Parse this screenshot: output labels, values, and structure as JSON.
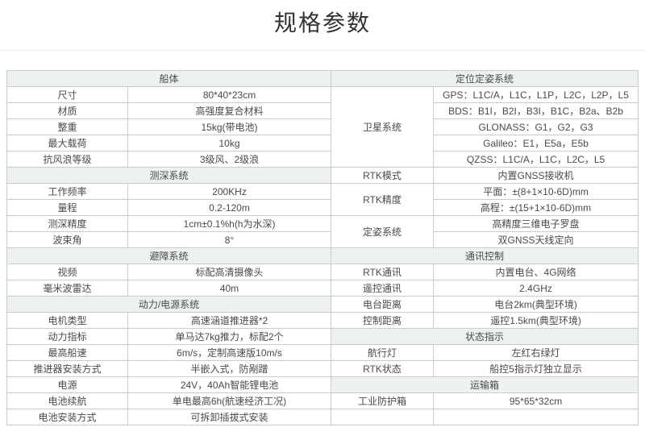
{
  "page": {
    "title": "规格参数"
  },
  "colors": {
    "section_header_bg": "#edf1f1",
    "grid_border": "#cbcbcb",
    "outer_border": "#b2b2b2",
    "text": "#4a4a4a"
  },
  "spec": {
    "left_sections": [
      {
        "title": "船体",
        "rows": [
          [
            "尺寸",
            "80*40*23cm"
          ],
          [
            "材质",
            "高强度复合材料"
          ],
          [
            "整重",
            "15kg(带电池)"
          ],
          [
            "最大载荷",
            "10kg"
          ],
          [
            "抗风浪等级",
            "3级风、2级浪"
          ]
        ]
      },
      {
        "title": "测深系统",
        "rows": [
          [
            "工作频率",
            "200KHz"
          ],
          [
            "量程",
            "0.2-120m"
          ],
          [
            "测深精度",
            "1cm±0.1%h(h为水深)"
          ],
          [
            "波束角",
            "8°"
          ]
        ]
      },
      {
        "title": "避障系统",
        "rows": [
          [
            "视频",
            "标配高清摄像头"
          ],
          [
            "毫米波雷达",
            "40m"
          ]
        ]
      },
      {
        "title": "动力/电源系统",
        "rows": [
          [
            "电机类型",
            "高速涵道推进器*2"
          ],
          [
            "动力指标",
            "单马达7kg推力，标配2个"
          ],
          [
            "最高船速",
            "6m/s，定制高速版10m/s"
          ],
          [
            "推进器安装方式",
            "半嵌入式，防剐蹭"
          ],
          [
            "电源",
            "24V，40Ah智能锂电池"
          ],
          [
            "电池续航",
            "单电最高6h(航速经济工况)"
          ],
          [
            "电池安装方式",
            "可拆卸插拔式安装"
          ]
        ]
      }
    ],
    "right_sections": [
      {
        "title": "定位定姿系统",
        "groups": [
          {
            "label": "卫星系统",
            "values": [
              "GPS：L1C/A，L1C，L1P，L2C，L2P，L5",
              "BDS：B1I，B2I，B3I，B1C，B2a、B2b",
              "GLONASS：G1，G2，G3",
              "Galileo：E1，E5a，E5b",
              "QZSS：L1C/A，L1C，L2C，L5"
            ]
          },
          {
            "label": "RTK模式",
            "values": [
              "内置GNSS接收机"
            ]
          },
          {
            "label": "RTK精度",
            "values": [
              "平面：±(8+1×10-6D)mm",
              "高程：±(15+1×10-6D)mm"
            ]
          },
          {
            "label": "定姿系统",
            "values": [
              "高精度三维电子罗盘",
              "双GNSS天线定向"
            ]
          }
        ]
      },
      {
        "title": "通讯控制",
        "groups": [
          {
            "label": "RTK通讯",
            "values": [
              "内置电台、4G网络"
            ]
          },
          {
            "label": "遥控通讯",
            "values": [
              "2.4GHz"
            ]
          },
          {
            "label": "电台距离",
            "values": [
              "电台2km(典型环境)"
            ]
          },
          {
            "label": "控制距离",
            "values": [
              "遥控1.5km(典型环境)"
            ]
          }
        ]
      },
      {
        "title": "状态指示",
        "groups": [
          {
            "label": "航行灯",
            "values": [
              "左红右绿灯"
            ]
          },
          {
            "label": "RTK状态",
            "values": [
              "船控5指示灯独立显示"
            ]
          }
        ]
      },
      {
        "title": "运输箱",
        "groups": [
          {
            "label": "工业防护箱",
            "values": [
              "95*65*32cm"
            ]
          },
          {
            "label": "",
            "values": [
              ""
            ]
          }
        ]
      }
    ]
  }
}
